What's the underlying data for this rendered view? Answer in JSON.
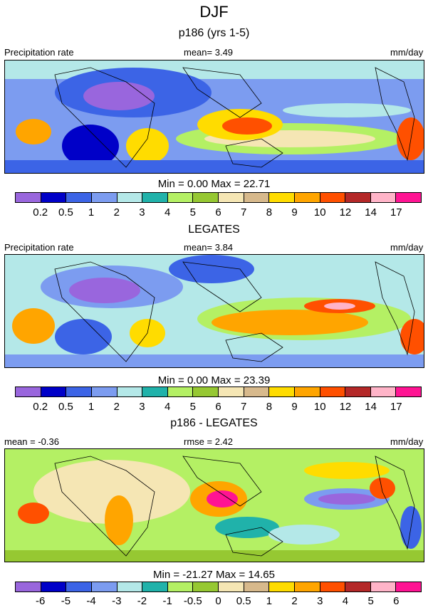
{
  "figure": {
    "title": "DJF"
  },
  "panels": [
    {
      "title": "p186 (yrs 1-5)",
      "left_label": "Precipitation rate",
      "center_label": "mean=   3.49",
      "right_label": "mm/day",
      "minmax": "Min =   0.00 Max =  22.71",
      "colorbar_ticks": [
        "0.2",
        "0.5",
        "1",
        "2",
        "3",
        "4",
        "5",
        "6",
        "7",
        "8",
        "9",
        "10",
        "12",
        "14",
        "17"
      ],
      "colors": [
        "#9966dd",
        "#0000c8",
        "#3c64e6",
        "#7c9cf0",
        "#b4e8e8",
        "#20b2aa",
        "#b4f064",
        "#96c832",
        "#f5e6b4",
        "#d7b98c",
        "#ffdc00",
        "#ffa500",
        "#ff5000",
        "#b42828",
        "#ffb4c8",
        "#ff1493"
      ]
    },
    {
      "title": "LEGATES",
      "left_label": "Precipitation rate",
      "center_label": "mean=   3.84",
      "right_label": "mm/day",
      "minmax": "Min =   0.00 Max =  23.39",
      "colorbar_ticks": [
        "0.2",
        "0.5",
        "1",
        "2",
        "3",
        "4",
        "5",
        "6",
        "7",
        "8",
        "9",
        "10",
        "12",
        "14",
        "17"
      ],
      "colors": [
        "#9966dd",
        "#0000c8",
        "#3c64e6",
        "#7c9cf0",
        "#b4e8e8",
        "#20b2aa",
        "#b4f064",
        "#96c832",
        "#f5e6b4",
        "#d7b98c",
        "#ffdc00",
        "#ffa500",
        "#ff5000",
        "#b42828",
        "#ffb4c8",
        "#ff1493"
      ]
    },
    {
      "title": "p186 - LEGATES",
      "left_label": "mean = -0.36",
      "center_label": "rmse =  2.42",
      "right_label": "mm/day",
      "minmax": "Min = -21.27 Max =  14.65",
      "colorbar_ticks": [
        "-6",
        "-5",
        "-4",
        "-3",
        "-2",
        "-1",
        "-0.5",
        "0",
        "0.5",
        "1",
        "2",
        "3",
        "4",
        "5",
        "6"
      ],
      "colors": [
        "#9966dd",
        "#0000c8",
        "#3c64e6",
        "#7c9cf0",
        "#b4e8e8",
        "#20b2aa",
        "#b4f064",
        "#96c832",
        "#f5e6b4",
        "#d7b98c",
        "#ffdc00",
        "#ffa500",
        "#ff5000",
        "#b42828",
        "#ffb4c8",
        "#ff1493"
      ]
    }
  ]
}
